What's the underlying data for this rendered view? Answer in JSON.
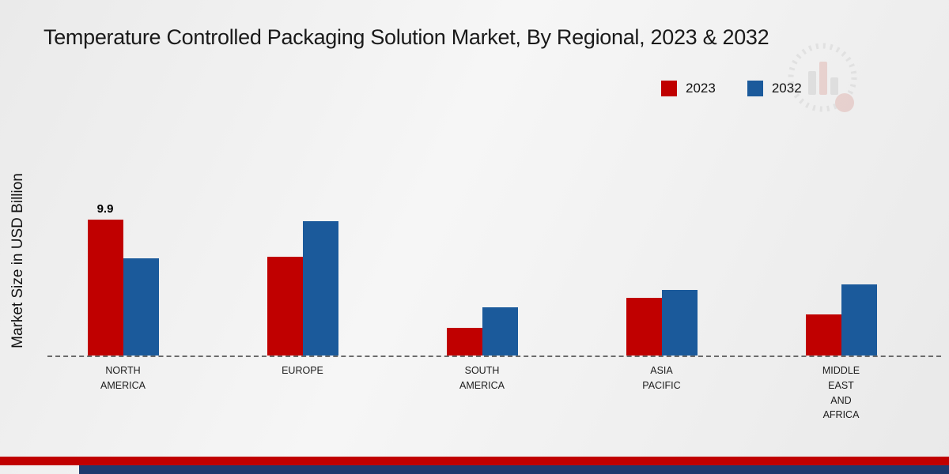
{
  "title": "Temperature Controlled Packaging Solution Market, By Regional, 2023 & 2032",
  "ylabel": "Market Size in USD Billion",
  "legend": [
    {
      "label": "2023",
      "color": "#c00000"
    },
    {
      "label": "2032",
      "color": "#1b5a9b"
    }
  ],
  "chart_data": {
    "type": "bar",
    "title": "Temperature Controlled Packaging Solution Market, By Regional, 2023 & 2032",
    "xlabel": "",
    "ylabel": "Market Size in USD Billion",
    "ylim": [
      0,
      12
    ],
    "grid": false,
    "legend_position": "top-right",
    "baseline_dashed": true,
    "categories": [
      "NORTH AMERICA",
      "EUROPE",
      "SOUTH AMERICA",
      "ASIA PACIFIC",
      "MIDDLE EAST AND AFRICA"
    ],
    "series": [
      {
        "name": "2023",
        "color": "#c00000",
        "values": [
          9.9,
          7.2,
          2.0,
          4.2,
          3.0
        ],
        "labels": [
          "9.9",
          "",
          "",
          "",
          ""
        ]
      },
      {
        "name": "2032",
        "color": "#1b5a9b",
        "values": [
          7.1,
          9.8,
          3.5,
          4.8,
          5.2
        ],
        "labels": [
          "",
          "",
          "",
          "",
          ""
        ]
      }
    ],
    "annotations": [
      {
        "series": "2023",
        "category": "NORTH AMERICA",
        "text": "9.9"
      }
    ]
  },
  "footer": {
    "red_band_color": "#c00000",
    "navy_band_color": "#1e3a6e"
  }
}
